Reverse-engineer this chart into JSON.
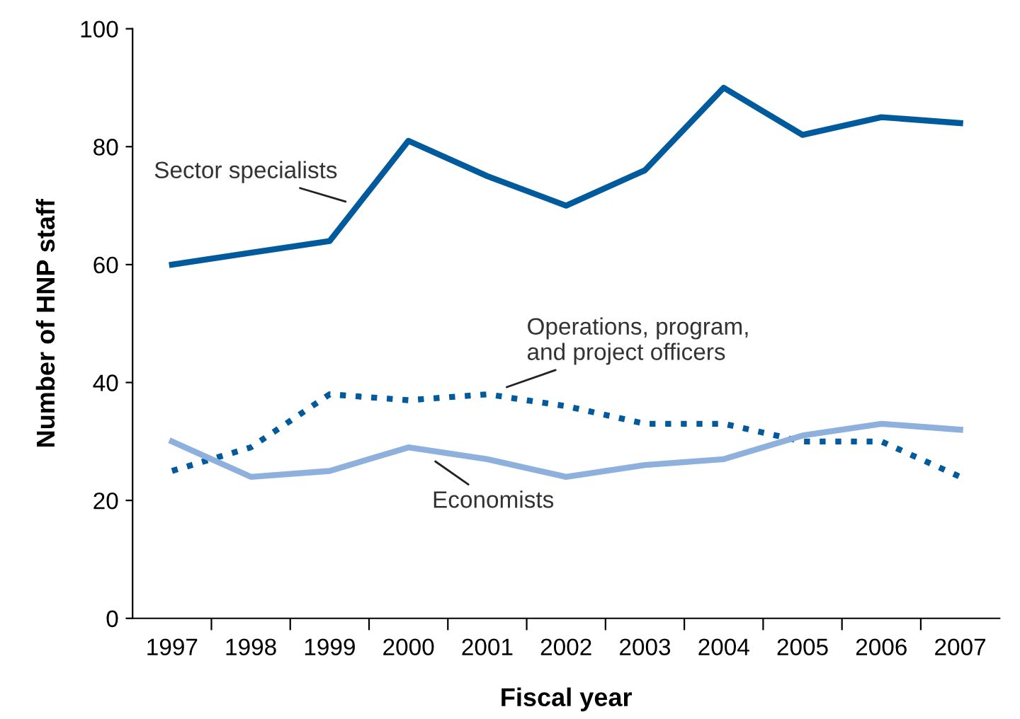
{
  "chart_data": {
    "type": "line",
    "xlabel": "Fiscal year",
    "ylabel": "Number of HNP staff",
    "categories": [
      "1997",
      "1998",
      "1999",
      "2000",
      "2001",
      "2002",
      "2003",
      "2004",
      "2005",
      "2006",
      "2007"
    ],
    "series": [
      {
        "name": "Sector specialists",
        "color": "#005a9c",
        "line_style": "solid",
        "values": [
          60,
          62,
          64,
          81,
          75,
          70,
          76,
          90,
          82,
          85,
          84
        ]
      },
      {
        "name": "Operations, program,\nand project officers",
        "color": "#005a9c",
        "line_style": "dotted",
        "values": [
          25,
          29,
          38,
          37,
          38,
          36,
          33,
          33,
          30,
          30,
          24
        ]
      },
      {
        "name": "Economists",
        "color": "#8eb0dc",
        "line_style": "solid",
        "values": [
          30,
          24,
          25,
          29,
          27,
          24,
          26,
          27,
          31,
          33,
          32
        ]
      }
    ],
    "ylim": [
      0,
      100
    ],
    "yticks": [
      0,
      20,
      40,
      60,
      80,
      100
    ],
    "grid": false,
    "legend": false,
    "marker": "none"
  }
}
